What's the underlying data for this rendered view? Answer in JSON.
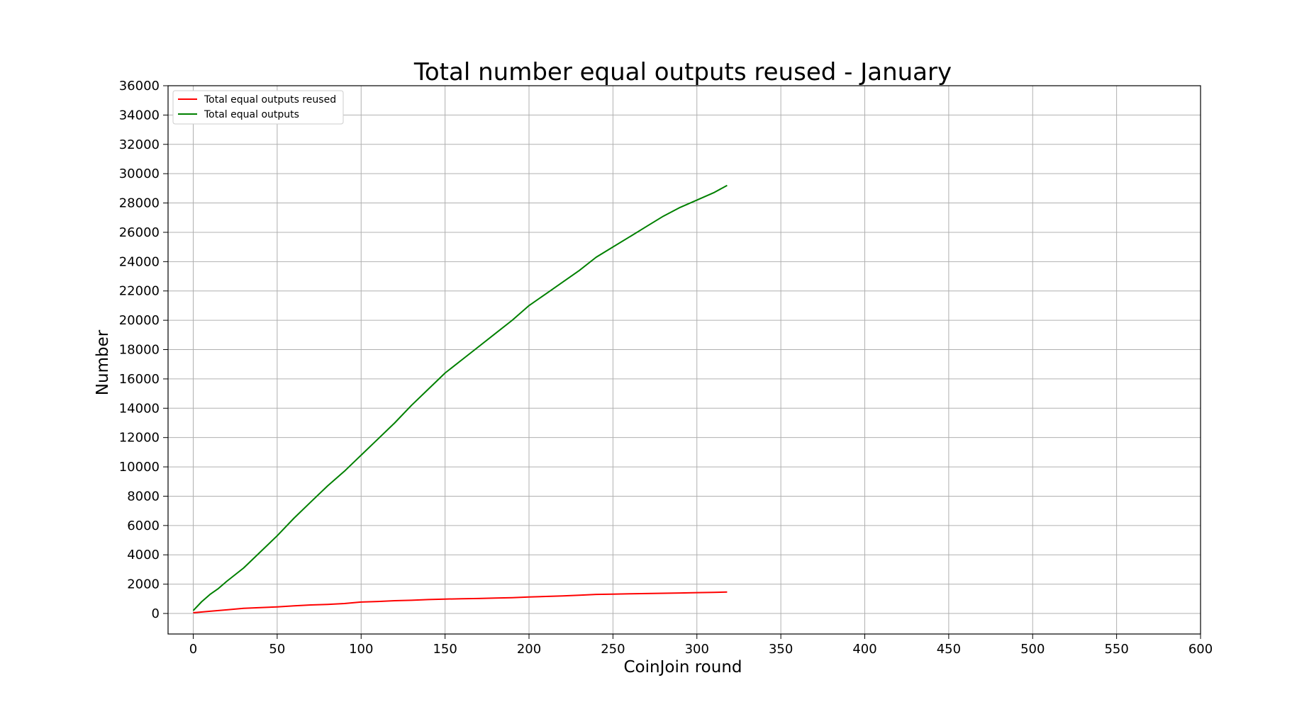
{
  "chart_data": {
    "type": "line",
    "title": "Total number equal outputs reused - January",
    "xlabel": "CoinJoin round",
    "ylabel": "Number",
    "xlim": [
      -15,
      600
    ],
    "ylim": [
      -1400,
      36000
    ],
    "xticks": [
      0,
      50,
      100,
      150,
      200,
      250,
      300,
      350,
      400,
      450,
      500,
      550,
      600
    ],
    "yticks": [
      0,
      2000,
      4000,
      6000,
      8000,
      10000,
      12000,
      14000,
      16000,
      18000,
      20000,
      22000,
      24000,
      26000,
      28000,
      30000,
      32000,
      34000,
      36000
    ],
    "grid": true,
    "legend_position": "top-left",
    "series": [
      {
        "name": "Total equal outputs reused",
        "color": "#ff0000",
        "x": [
          0,
          10,
          20,
          30,
          40,
          50,
          60,
          70,
          80,
          90,
          100,
          110,
          120,
          130,
          140,
          150,
          160,
          170,
          180,
          190,
          200,
          210,
          220,
          230,
          240,
          250,
          260,
          270,
          280,
          290,
          300,
          310,
          318
        ],
        "y": [
          50,
          150,
          250,
          350,
          400,
          450,
          520,
          580,
          620,
          680,
          780,
          820,
          870,
          900,
          950,
          980,
          1000,
          1020,
          1050,
          1080,
          1120,
          1160,
          1200,
          1250,
          1300,
          1320,
          1340,
          1360,
          1380,
          1400,
          1420,
          1440,
          1460
        ]
      },
      {
        "name": "Total equal outputs",
        "color": "#008000",
        "x": [
          0,
          5,
          10,
          15,
          20,
          30,
          40,
          50,
          55,
          60,
          70,
          80,
          90,
          100,
          110,
          120,
          130,
          140,
          150,
          160,
          170,
          180,
          190,
          200,
          210,
          220,
          230,
          240,
          250,
          260,
          270,
          280,
          290,
          300,
          310,
          318
        ],
        "y": [
          200,
          800,
          1300,
          1700,
          2200,
          3100,
          4200,
          5300,
          5900,
          6500,
          7600,
          8700,
          9700,
          10800,
          11900,
          13000,
          14200,
          15300,
          16400,
          17300,
          18200,
          19100,
          20000,
          21000,
          21800,
          22600,
          23400,
          24300,
          25000,
          25700,
          26400,
          27100,
          27700,
          28200,
          28700,
          29200
        ]
      }
    ]
  }
}
